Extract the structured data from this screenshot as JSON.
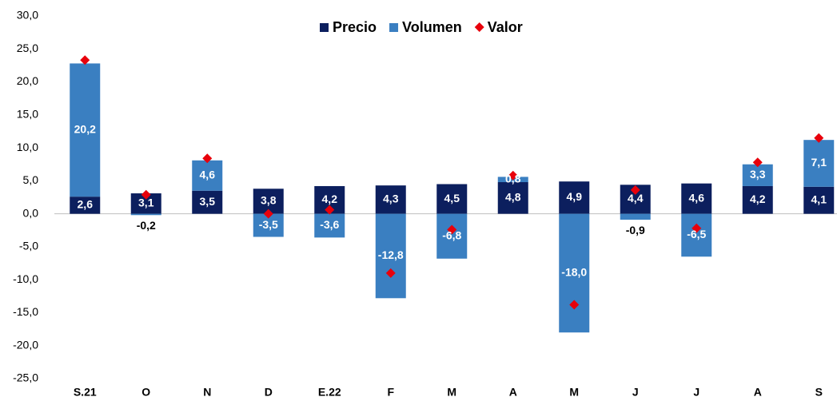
{
  "chart_data": {
    "type": "stacked-bar-with-markers",
    "categories": [
      "S.21",
      "O",
      "N",
      "D",
      "E.22",
      "F",
      "M",
      "A",
      "M",
      "J",
      "J",
      "A",
      "S"
    ],
    "series": [
      {
        "name": "Precio",
        "color": "#0c1f5e",
        "kind": "bar",
        "values": [
          2.6,
          3.1,
          3.5,
          3.8,
          4.2,
          4.3,
          4.5,
          4.8,
          4.9,
          4.4,
          4.6,
          4.2,
          4.1
        ],
        "value_labels": [
          "2,6",
          "3,1",
          "3,5",
          "3,8",
          "4,2",
          "4,3",
          "4,5",
          "4,8",
          "4,9",
          "4,4",
          "4,6",
          "4,2",
          "4,1"
        ]
      },
      {
        "name": "Volumen",
        "color": "#3a7fc1",
        "kind": "bar",
        "values": [
          20.2,
          -0.2,
          4.6,
          -3.5,
          -3.6,
          -12.8,
          -6.8,
          0.8,
          -18.0,
          -0.9,
          -6.5,
          3.3,
          7.1
        ],
        "value_labels": [
          "20,2",
          "-0,2",
          "4,6",
          "-3,5",
          "-3,6",
          "-12,8",
          "-6,8",
          "0,8",
          "-18,0",
          "-0,9",
          "-6,5",
          "3,3",
          "7,1"
        ]
      },
      {
        "name": "Valor",
        "color": "#e8000b",
        "kind": "marker",
        "values": [
          23.3,
          2.9,
          8.4,
          0.0,
          0.6,
          -9.0,
          -2.4,
          5.8,
          -13.8,
          3.6,
          -2.2,
          7.8,
          11.5
        ]
      }
    ],
    "ylim": [
      -25,
      30
    ],
    "yticks": [
      {
        "value": -25,
        "label": "-25,0"
      },
      {
        "value": -20,
        "label": "-20,0"
      },
      {
        "value": -15,
        "label": "-15,0"
      },
      {
        "value": -10,
        "label": "-10,0"
      },
      {
        "value": -5,
        "label": "-5,0"
      },
      {
        "value": 0,
        "label": "0,0"
      },
      {
        "value": 5,
        "label": "5,0"
      },
      {
        "value": 10,
        "label": "10,0"
      },
      {
        "value": 15,
        "label": "15,0"
      },
      {
        "value": 20,
        "label": "20,0"
      },
      {
        "value": 25,
        "label": "25,0"
      },
      {
        "value": 30,
        "label": "30,0"
      }
    ],
    "grid": false,
    "legend": "top"
  }
}
